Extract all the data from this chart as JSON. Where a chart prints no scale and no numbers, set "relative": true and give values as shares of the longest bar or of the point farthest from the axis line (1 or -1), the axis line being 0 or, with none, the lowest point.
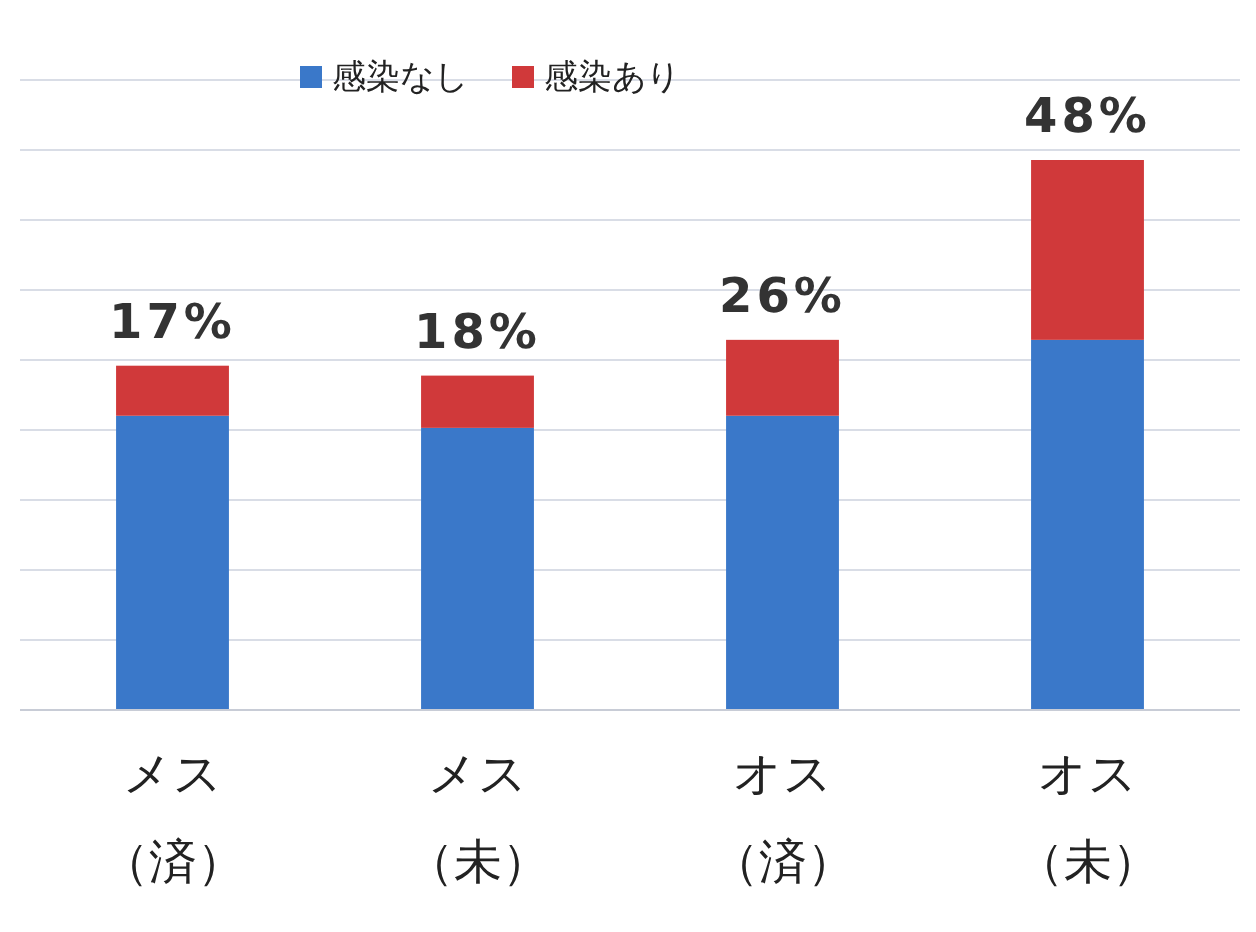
{
  "chart_data": {
    "type": "bar",
    "stacked": true,
    "relative": true,
    "grid": true,
    "legend": "top",
    "categories": [
      "メス（済）",
      "メス（未）",
      "オス（済）",
      "オス（未）"
    ],
    "annotations": [
      "17%",
      "18%",
      "26%",
      "48%"
    ],
    "series": [
      {
        "name": "感染なし",
        "color": "#3a78c9",
        "values": [
          0.535,
          0.513,
          0.535,
          0.673
        ]
      },
      {
        "name": "感染あり",
        "color": "#d0393a",
        "values": [
          0.091,
          0.095,
          0.138,
          0.327
        ]
      }
    ]
  }
}
